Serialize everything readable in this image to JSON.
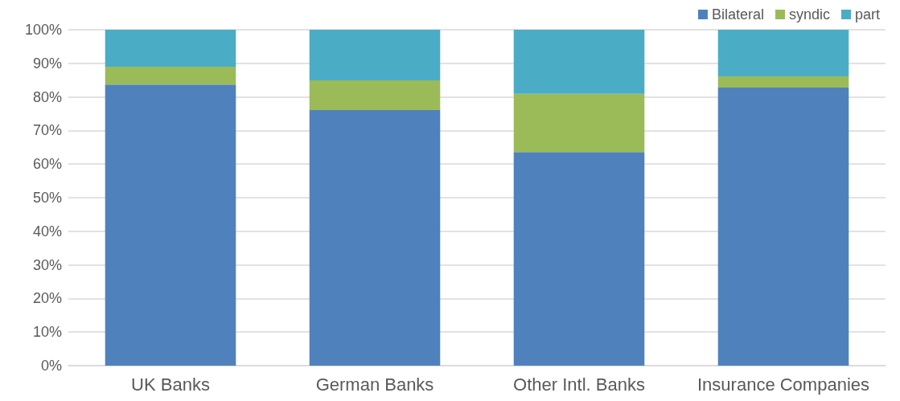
{
  "chart_data": {
    "type": "bar",
    "stacked": true,
    "categories": [
      "UK Banks",
      "German Banks",
      "Other Intl. Banks",
      "Insurance Companies"
    ],
    "series": [
      {
        "name": "Bilateral",
        "color": "#4f81bd",
        "values": [
          83.7,
          76.1,
          63.6,
          82.8
        ]
      },
      {
        "name": "syndic",
        "color": "#9bbb59",
        "values": [
          5.3,
          8.8,
          17.3,
          3.3
        ]
      },
      {
        "name": "part",
        "color": "#4bacc6",
        "values": [
          11.0,
          15.1,
          19.1,
          13.9
        ]
      }
    ],
    "ylim": [
      0,
      100
    ],
    "yticks": [
      {
        "value": 0,
        "label": "0%"
      },
      {
        "value": 10,
        "label": "10%"
      },
      {
        "value": 20,
        "label": "20%"
      },
      {
        "value": 30,
        "label": "30%"
      },
      {
        "value": 40,
        "label": "40%"
      },
      {
        "value": 50,
        "label": "50%"
      },
      {
        "value": 60,
        "label": "60%"
      },
      {
        "value": 70,
        "label": "70%"
      },
      {
        "value": 80,
        "label": "80%"
      },
      {
        "value": 90,
        "label": "90%"
      },
      {
        "value": 100,
        "label": "100%"
      }
    ],
    "grid": "y",
    "legend": "top right"
  }
}
